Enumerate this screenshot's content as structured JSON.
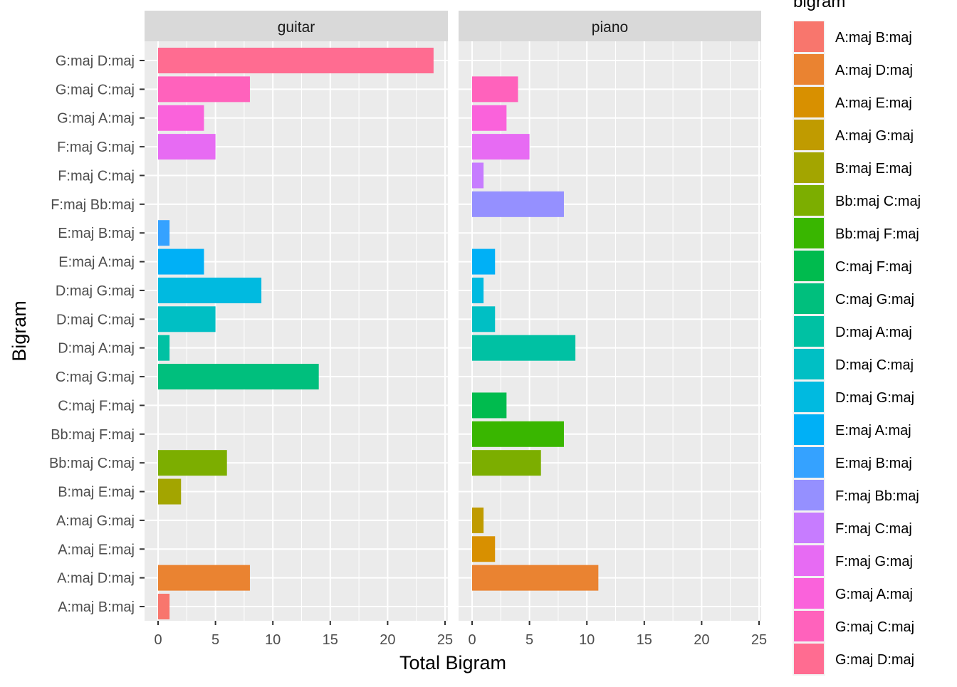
{
  "chart_data": {
    "type": "bar",
    "orientation": "horizontal",
    "facets": [
      "guitar",
      "piano"
    ],
    "categories": [
      "A:maj B:maj",
      "A:maj D:maj",
      "A:maj E:maj",
      "A:maj G:maj",
      "B:maj E:maj",
      "Bb:maj C:maj",
      "Bb:maj F:maj",
      "C:maj F:maj",
      "C:maj G:maj",
      "D:maj A:maj",
      "D:maj C:maj",
      "D:maj G:maj",
      "E:maj A:maj",
      "E:maj B:maj",
      "F:maj Bb:maj",
      "F:maj C:maj",
      "F:maj G:maj",
      "G:maj A:maj",
      "G:maj C:maj",
      "G:maj D:maj"
    ],
    "series": [
      {
        "name": "guitar",
        "values": [
          1,
          8,
          0,
          0,
          2,
          6,
          0,
          0,
          14,
          1,
          5,
          9,
          4,
          1,
          0,
          0,
          5,
          4,
          8,
          24
        ]
      },
      {
        "name": "piano",
        "values": [
          0,
          11,
          2,
          1,
          0,
          6,
          8,
          3,
          0,
          9,
          2,
          1,
          2,
          0,
          8,
          1,
          5,
          3,
          4,
          0
        ]
      }
    ],
    "colors": [
      "#F8766D",
      "#EA8331",
      "#D89000",
      "#C09B00",
      "#A3A500",
      "#7CAE00",
      "#39B600",
      "#00BB4E",
      "#00BF7D",
      "#00C1A3",
      "#00BFC4",
      "#00BAE0",
      "#00B0F6",
      "#35A2FF",
      "#9590FF",
      "#C77CFF",
      "#E76BF3",
      "#FA62DB",
      "#FF62BC",
      "#FF6C91"
    ],
    "xlabel": "Total Bigram",
    "ylabel": "Bigram",
    "xlim": [
      0,
      25
    ],
    "xticks": [
      "0",
      "5",
      "10",
      "15",
      "20",
      "25"
    ],
    "grid": true,
    "legend": {
      "title": "bigram",
      "position": "right"
    }
  }
}
